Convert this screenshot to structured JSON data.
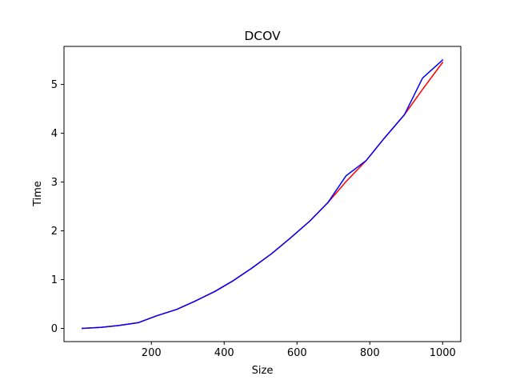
{
  "chart_data": {
    "type": "line",
    "title": "DCOV",
    "xlabel": "Size",
    "ylabel": "Time",
    "xlim": [
      -40,
      1050
    ],
    "ylim": [
      -0.27,
      5.78
    ],
    "grid": false,
    "x_ticks": [
      200,
      400,
      600,
      800,
      1000
    ],
    "y_ticks": [
      0,
      1,
      2,
      3,
      4,
      5
    ],
    "x_tick_labels": [
      "200",
      "400",
      "600",
      "800",
      "1000"
    ],
    "y_tick_labels": [
      "0",
      "1",
      "2",
      "3",
      "4",
      "5"
    ],
    "series": [
      {
        "color": "#ff0000",
        "x": [
          10,
          60,
          110,
          165,
          215,
          270,
          320,
          375,
          425,
          475,
          530,
          580,
          635,
          685,
          735,
          790,
          840,
          895,
          945,
          1000
        ],
        "y": [
          0.0,
          0.02,
          0.06,
          0.12,
          0.26,
          0.39,
          0.56,
          0.76,
          0.98,
          1.23,
          1.53,
          1.84,
          2.2,
          2.58,
          3.01,
          3.44,
          3.9,
          4.38,
          4.9,
          5.45
        ]
      },
      {
        "color": "#0000ff",
        "x": [
          10,
          60,
          110,
          165,
          215,
          270,
          320,
          375,
          425,
          475,
          530,
          580,
          635,
          685,
          735,
          790,
          840,
          895,
          945,
          1000
        ],
        "y": [
          0.0,
          0.02,
          0.06,
          0.12,
          0.26,
          0.39,
          0.56,
          0.76,
          0.98,
          1.23,
          1.53,
          1.84,
          2.2,
          2.58,
          3.13,
          3.44,
          3.9,
          4.38,
          5.13,
          5.5
        ]
      }
    ]
  }
}
